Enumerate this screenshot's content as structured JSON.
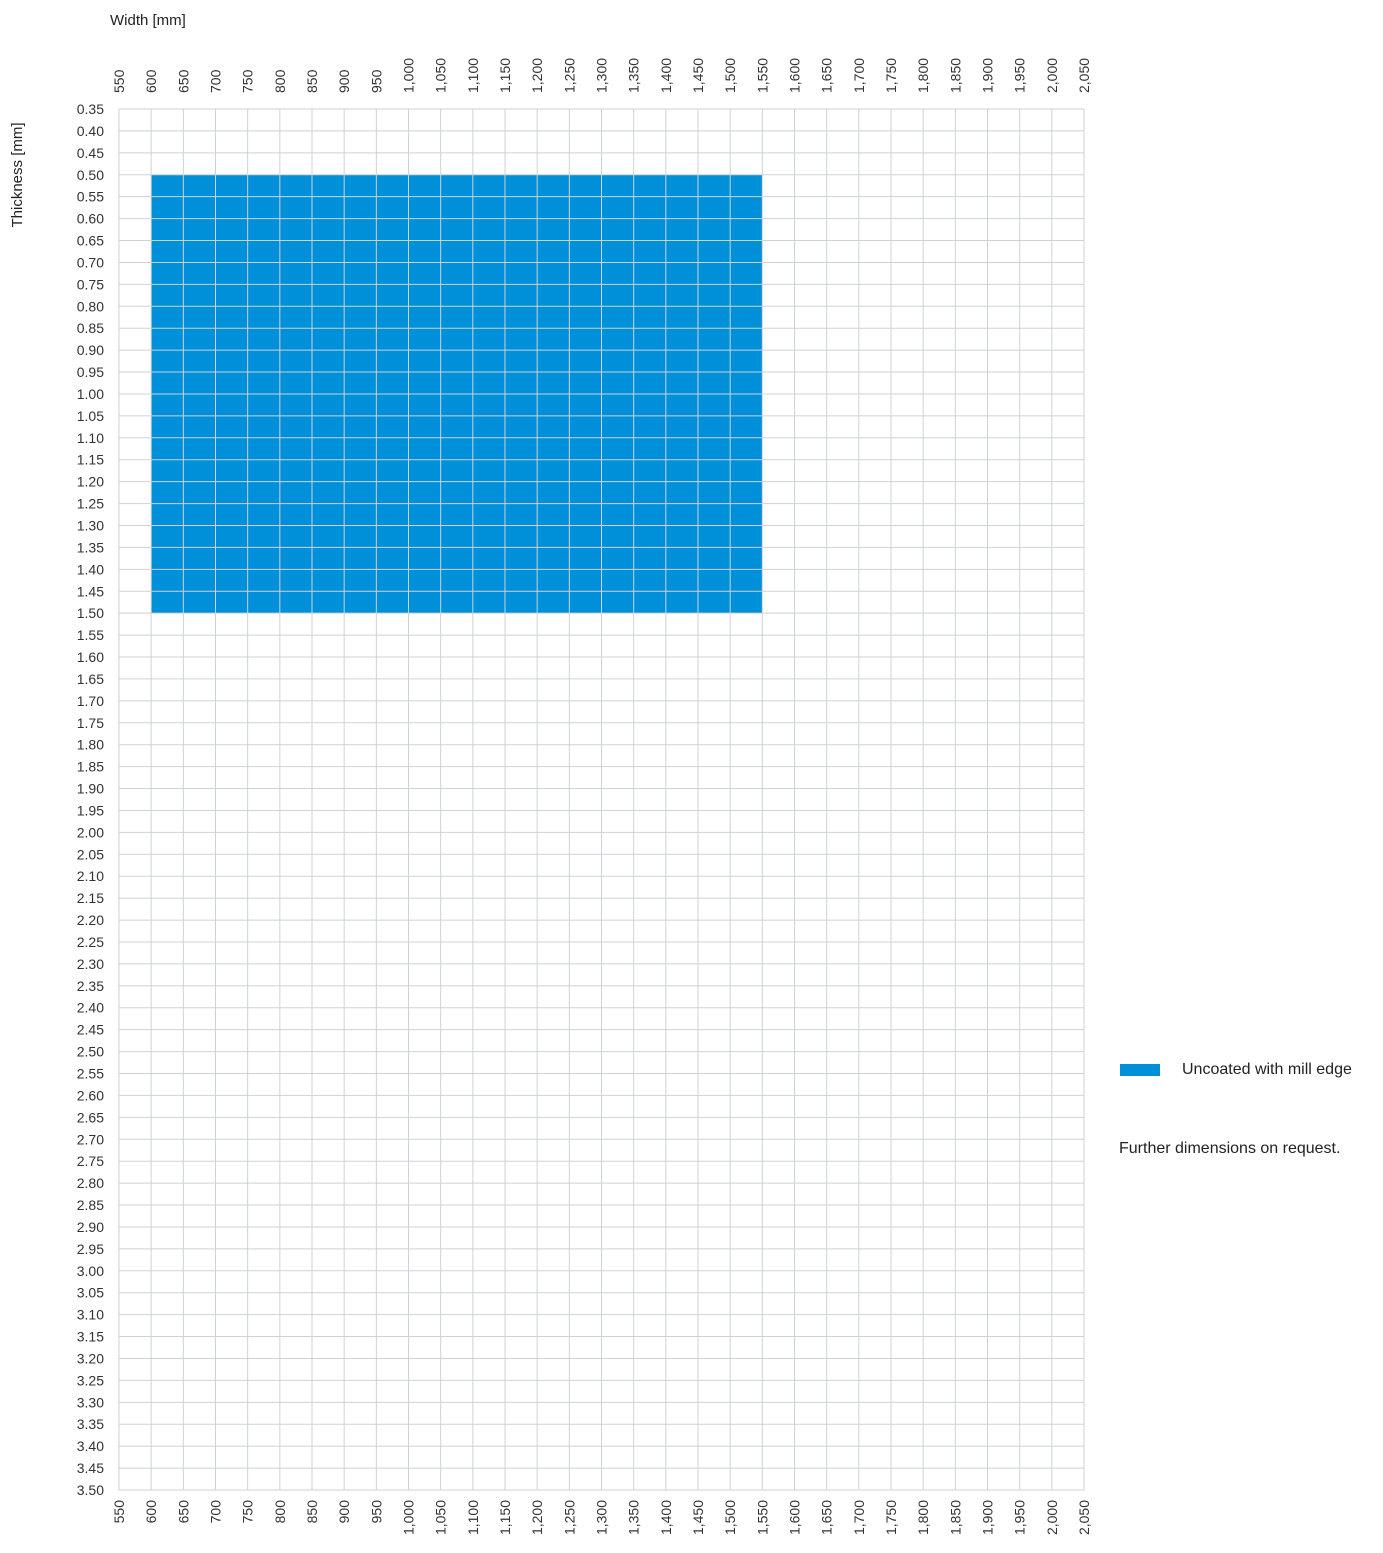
{
  "chart_data": {
    "type": "heatmap",
    "xlabel": "Width [mm]",
    "ylabel": "Thickness [mm]",
    "x_ticks": [
      "550",
      "600",
      "650",
      "700",
      "750",
      "800",
      "850",
      "900",
      "950",
      "1,000",
      "1,050",
      "1,100",
      "1,150",
      "1,200",
      "1,250",
      "1,300",
      "1,350",
      "1,400",
      "1,450",
      "1,500",
      "1,550",
      "1,600",
      "1,650",
      "1,700",
      "1,750",
      "1,800",
      "1,850",
      "1,900",
      "1,950",
      "2,000",
      "2,050"
    ],
    "y_ticks": [
      "0.35",
      "0.40",
      "0.45",
      "0.50",
      "0.55",
      "0.60",
      "0.65",
      "0.70",
      "0.75",
      "0.80",
      "0.85",
      "0.90",
      "0.95",
      "1.00",
      "1.05",
      "1.10",
      "1.15",
      "1.20",
      "1.25",
      "1.30",
      "1.35",
      "1.40",
      "1.45",
      "1.50",
      "1.55",
      "1.60",
      "1.65",
      "1.70",
      "1.75",
      "1.80",
      "1.85",
      "1.90",
      "1.95",
      "2.00",
      "2.05",
      "2.10",
      "2.15",
      "2.20",
      "2.25",
      "2.30",
      "2.35",
      "2.40",
      "2.45",
      "2.50",
      "2.55",
      "2.60",
      "2.65",
      "2.70",
      "2.75",
      "2.80",
      "2.85",
      "2.90",
      "2.95",
      "3.00",
      "3.05",
      "3.10",
      "3.15",
      "3.20",
      "3.25",
      "3.30",
      "3.35",
      "3.40",
      "3.45",
      "3.50"
    ],
    "xlim": [
      550,
      2050
    ],
    "ylim": [
      0.35,
      3.5
    ],
    "x_axes": [
      "top",
      "bottom"
    ],
    "grid": true,
    "regions": [
      {
        "name": "Uncoated with mill edge",
        "x_range": [
          600,
          1550
        ],
        "y_range": [
          0.5,
          1.5
        ],
        "color": "#0090d9"
      }
    ]
  },
  "legend": {
    "label": "Uncoated with mill edge",
    "color": "#0090d9"
  },
  "note": "Further dimensions on request."
}
